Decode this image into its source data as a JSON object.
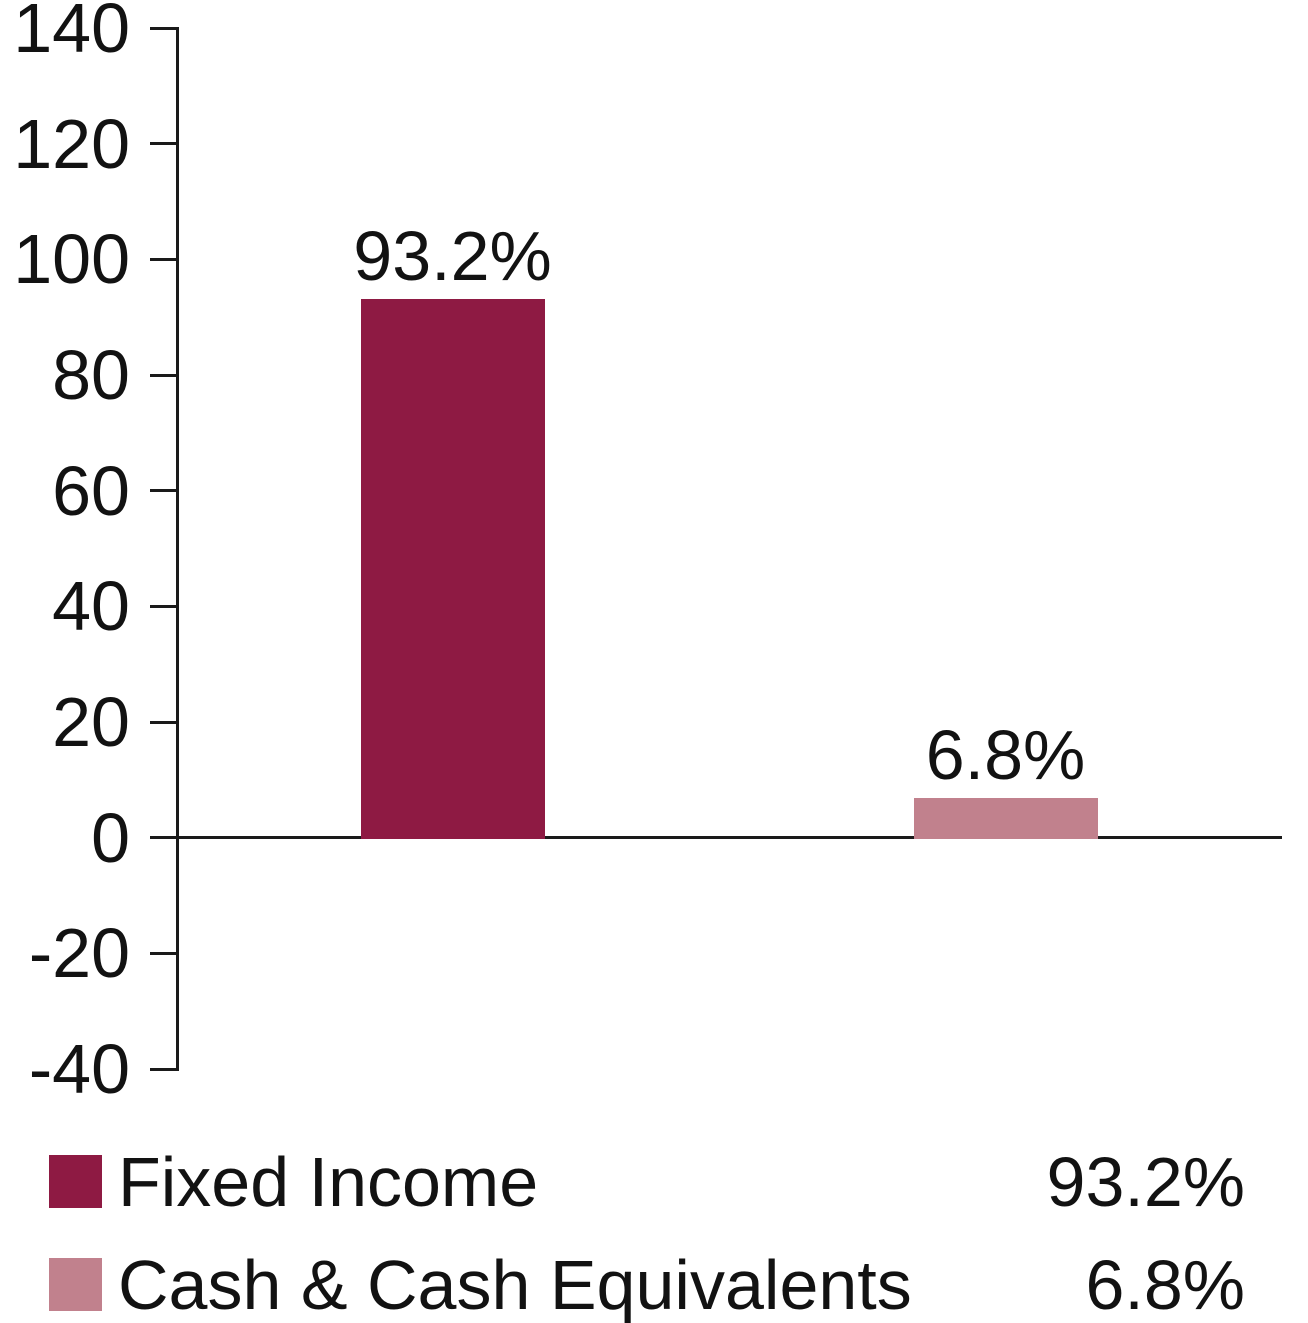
{
  "chart_data": {
    "type": "bar",
    "title": "",
    "xlabel": "",
    "ylabel": "",
    "categories": [
      "Fixed Income",
      "Cash & Cash Equivalents"
    ],
    "values": [
      93.2,
      6.8
    ],
    "value_labels": [
      "93.2%",
      "6.8%"
    ],
    "bar_colors": [
      "#8e1a43",
      "#c1818d"
    ],
    "ylim": [
      -40,
      140
    ],
    "ytick_interval": 20,
    "yticks": [
      140,
      120,
      100,
      80,
      60,
      40,
      20,
      0,
      -20,
      -40
    ],
    "ytick_labels": [
      "140",
      "120",
      "100",
      "80",
      "60",
      "40",
      "20",
      "0",
      "-20",
      "-40"
    ],
    "grid": false,
    "axis_color": "#1a1a1a",
    "legend_position": "bottom",
    "legend": [
      {
        "label": "Fixed Income",
        "value": "93.2%",
        "color": "#8e1a43"
      },
      {
        "label": "Cash & Cash Equivalents",
        "value": "6.8%",
        "color": "#c1818d"
      }
    ]
  }
}
